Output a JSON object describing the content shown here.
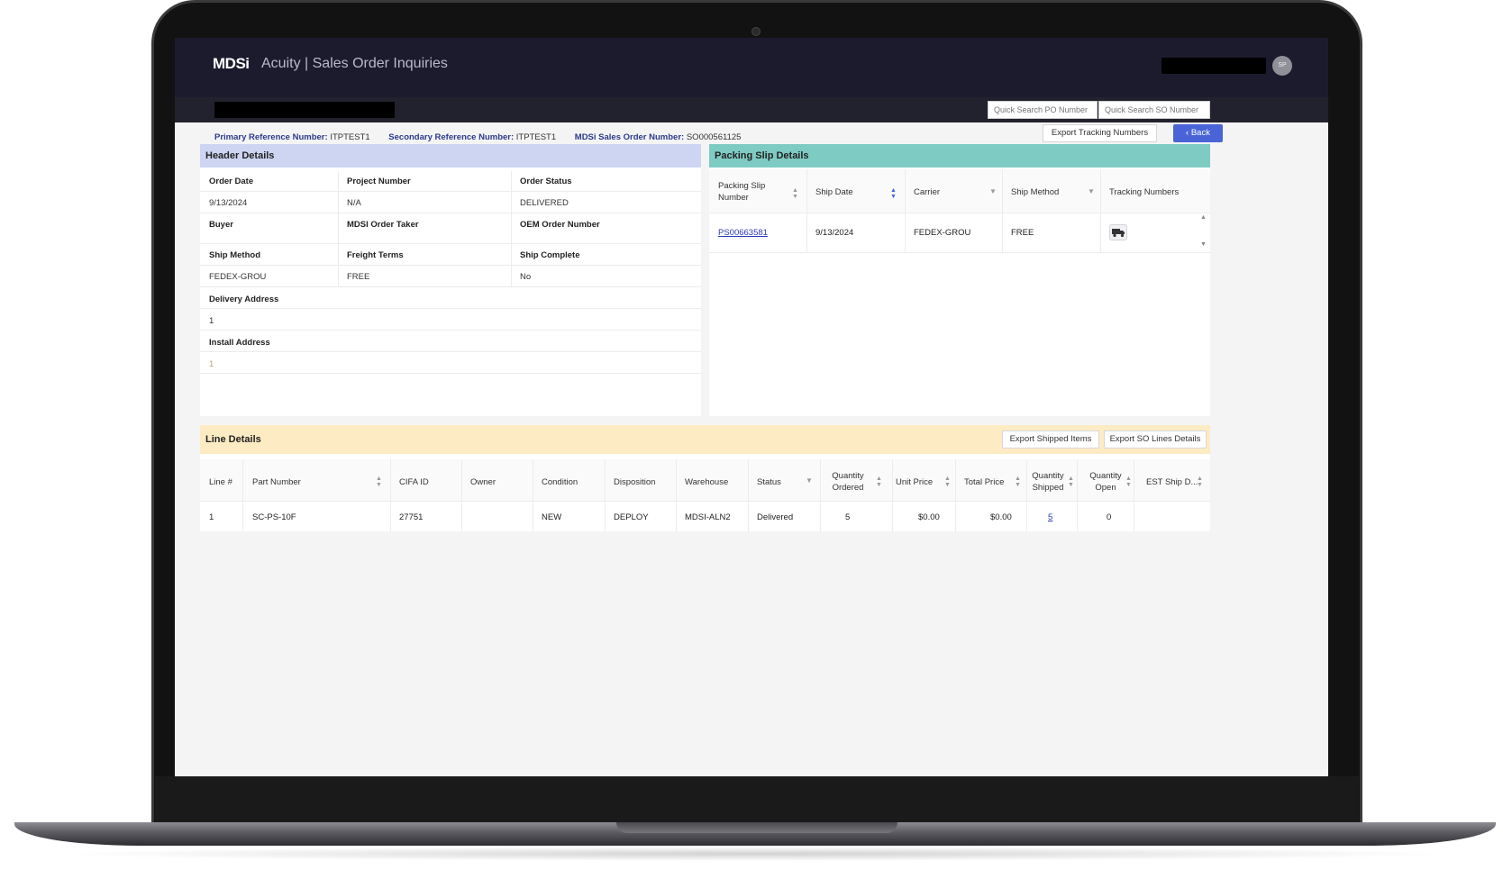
{
  "app": {
    "logo": "MDSi",
    "title": "Acuity | Sales Order Inquiries",
    "avatar_initials": "SP"
  },
  "quick_search": {
    "po_placeholder": "Quick Search PO Number",
    "so_placeholder": "Quick Search SO Number"
  },
  "references": {
    "primary_label": "Primary Reference Number:",
    "primary_value": "ITPTEST1",
    "secondary_label": "Secondary Reference Number:",
    "secondary_value": "ITPTEST1",
    "so_label": "MDSi Sales Order Number:",
    "so_value": "SO000561125"
  },
  "actions": {
    "export_tracking": "Export Tracking Numbers",
    "back": "Back"
  },
  "header_details": {
    "title": "Header Details",
    "order_date_label": "Order Date",
    "order_date_value": "9/13/2024",
    "project_number_label": "Project Number",
    "project_number_value": "N/A",
    "order_status_label": "Order Status",
    "order_status_value": "DELIVERED",
    "buyer_label": "Buyer",
    "order_taker_label": "MDSI Order Taker",
    "oem_label": "OEM Order Number",
    "ship_method_label": "Ship Method",
    "ship_method_value": "FEDEX-GROU",
    "freight_terms_label": "Freight Terms",
    "freight_terms_value": "FREE",
    "ship_complete_label": "Ship Complete",
    "ship_complete_value": "No",
    "delivery_address_label": "Delivery Address",
    "delivery_address_value": "1",
    "install_address_label": "Install Address",
    "install_address_value": "1"
  },
  "packing_slip": {
    "title": "Packing Slip Details",
    "columns": {
      "slip_number": "Packing Slip Number",
      "ship_date": "Ship Date",
      "carrier": "Carrier",
      "ship_method": "Ship Method",
      "tracking": "Tracking Numbers"
    },
    "row": {
      "slip_number": "PS00663581",
      "ship_date": "9/13/2024",
      "carrier": "FEDEX-GROU",
      "ship_method": "FREE"
    }
  },
  "line_details": {
    "title": "Line Details",
    "export_shipped": "Export Shipped Items",
    "export_lines": "Export SO Lines Details",
    "columns": {
      "line": "Line #",
      "part": "Part Number",
      "cifa": "CIFA ID",
      "owner": "Owner",
      "condition": "Condition",
      "disposition": "Disposition",
      "warehouse": "Warehouse",
      "status": "Status",
      "qty_ordered": "Quantity Ordered",
      "unit_price": "Unit Price",
      "total_price": "Total Price",
      "qty_shipped": "Quantity Shipped",
      "qty_open": "Quantity Open",
      "est_ship": "EST Ship D..."
    },
    "row": {
      "line": "1",
      "part": "SC-PS-10F",
      "cifa": "27751",
      "owner": "",
      "condition": "NEW",
      "disposition": "DEPLOY",
      "warehouse": "MDSI-ALN2",
      "status": "Delivered",
      "qty_ordered": "5",
      "unit_price": "$0.00",
      "total_price": "$0.00",
      "qty_shipped": "5",
      "qty_open": "0",
      "est_ship": ""
    }
  },
  "colors": {
    "topbar": "#1c1b2e",
    "header_details_head": "#cdd5f3",
    "packing_slip_head": "#7ecbc3",
    "line_details_head": "#fdebc3",
    "back_button": "#4a64d8"
  },
  "icons": {
    "tracking": "truck-icon",
    "back": "chevron-left-icon"
  }
}
